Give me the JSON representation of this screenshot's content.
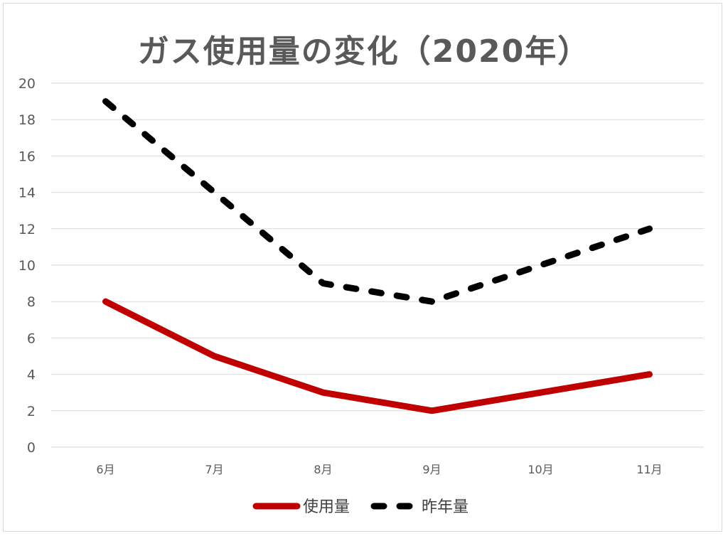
{
  "chart_data": {
    "type": "line",
    "title": "ガス使用量の変化（2020年）",
    "categories": [
      "6月",
      "7月",
      "8月",
      "9月",
      "10月",
      "11月"
    ],
    "ylim": [
      0,
      20
    ],
    "yticks": [
      0,
      2,
      4,
      6,
      8,
      10,
      12,
      14,
      16,
      18,
      20
    ],
    "grid": true,
    "legend_position": "bottom",
    "series": [
      {
        "name": "使用量",
        "values": [
          8,
          5,
          3,
          2,
          3,
          4
        ],
        "color": "#c00000",
        "style": "solid"
      },
      {
        "name": "昨年量",
        "values": [
          19,
          14,
          9,
          8,
          10,
          12
        ],
        "color": "#000000",
        "style": "dashed"
      }
    ]
  }
}
